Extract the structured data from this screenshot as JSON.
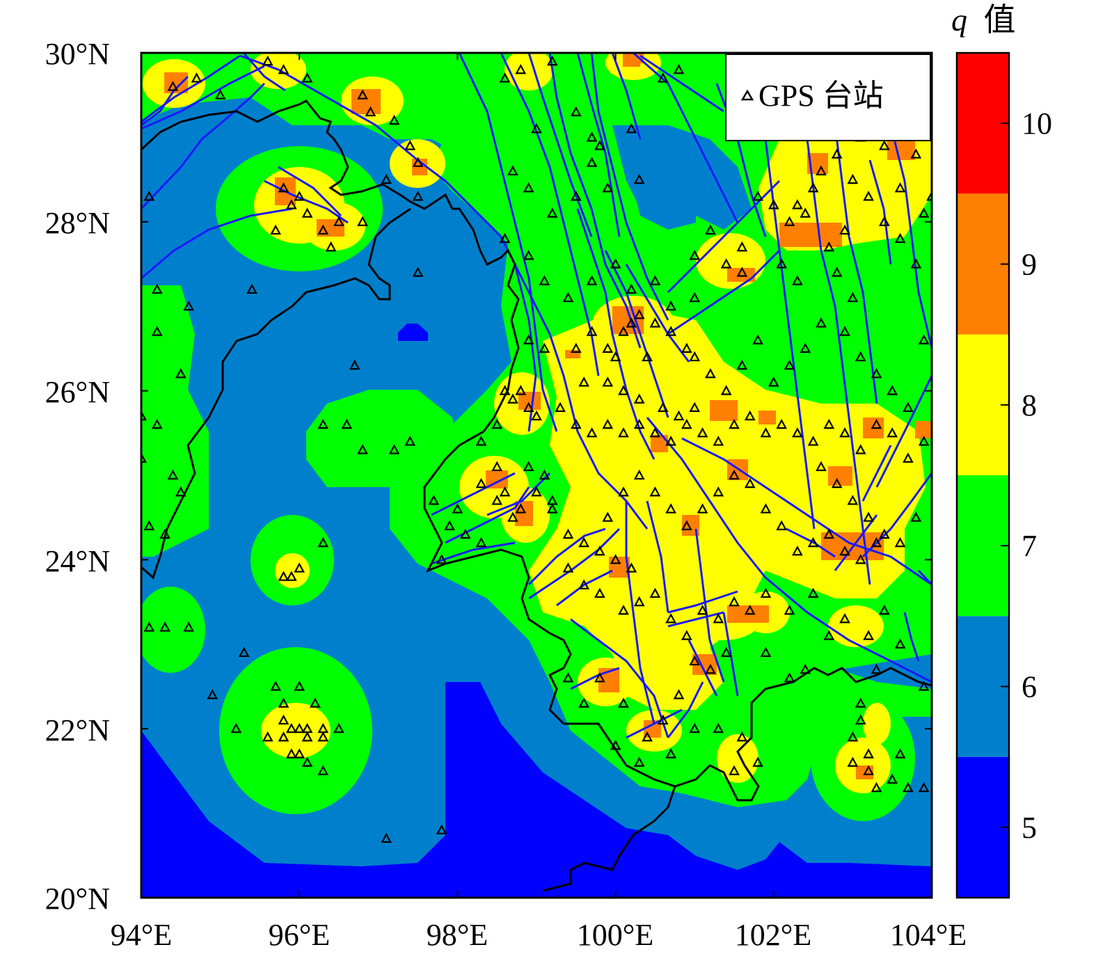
{
  "map": {
    "lon_range": [
      94,
      104
    ],
    "lat_range": [
      20,
      30
    ],
    "x_ticks": [
      "94°E",
      "96°E",
      "98°E",
      "100°E",
      "102°E",
      "104°E"
    ],
    "y_ticks": [
      "20°N",
      "22°N",
      "24°N",
      "26°N",
      "28°N",
      "30°N"
    ],
    "fault_color": "#1a1aff",
    "border_color": "#000000"
  },
  "legend": {
    "label": "GPS 台站",
    "marker": "triangle-icon"
  },
  "colorbar": {
    "title_var": "q",
    "title_suffix": "值",
    "ticks": [
      "5",
      "6",
      "7",
      "8",
      "9",
      "10"
    ],
    "classes": [
      {
        "range": [
          4.5,
          5.5
        ],
        "color": "#0000ff"
      },
      {
        "range": [
          5.5,
          6.5
        ],
        "color": "#0080cc"
      },
      {
        "range": [
          6.5,
          7.5
        ],
        "color": "#00ff00"
      },
      {
        "range": [
          7.5,
          8.5
        ],
        "color": "#ffff00"
      },
      {
        "range": [
          8.5,
          9.5
        ],
        "color": "#ff8000"
      },
      {
        "range": [
          9.5,
          10.5
        ],
        "color": "#ff0000"
      }
    ]
  },
  "stations": [
    [
      94.4,
      29.6
    ],
    [
      94.7,
      29.7
    ],
    [
      95.0,
      29.5
    ],
    [
      95.6,
      29.9
    ],
    [
      95.8,
      29.8
    ],
    [
      96.1,
      29.7
    ],
    [
      96.8,
      29.5
    ],
    [
      96.9,
      29.3
    ],
    [
      97.2,
      29.2
    ],
    [
      97.5,
      28.7
    ],
    [
      97.4,
      28.9
    ],
    [
      95.8,
      28.4
    ],
    [
      95.9,
      28.2
    ],
    [
      96.0,
      28.3
    ],
    [
      96.1,
      28.1
    ],
    [
      96.3,
      27.9
    ],
    [
      96.5,
      28.0
    ],
    [
      95.7,
      27.9
    ],
    [
      96.4,
      27.7
    ],
    [
      97.1,
      28.5
    ],
    [
      97.5,
      28.3
    ],
    [
      94.1,
      28.3
    ],
    [
      96.8,
      28.0
    ],
    [
      98.6,
      29.7
    ],
    [
      98.8,
      29.8
    ],
    [
      99.2,
      29.9
    ],
    [
      99.5,
      29.3
    ],
    [
      99.8,
      28.9
    ],
    [
      100.2,
      29.1
    ],
    [
      100.6,
      29.7
    ],
    [
      100.8,
      29.8
    ],
    [
      99.9,
      28.4
    ],
    [
      99.7,
      28.7
    ],
    [
      100.3,
      28.5
    ],
    [
      94.2,
      27.2
    ],
    [
      94.6,
      27.0
    ],
    [
      95.4,
      27.2
    ],
    [
      94.2,
      26.7
    ],
    [
      94.5,
      26.2
    ],
    [
      94.0,
      25.7
    ],
    [
      94.2,
      25.6
    ],
    [
      94.4,
      25.0
    ],
    [
      94.5,
      24.8
    ],
    [
      94.1,
      24.4
    ],
    [
      94.3,
      24.3
    ],
    [
      94.0,
      25.2
    ],
    [
      94.1,
      23.2
    ],
    [
      94.3,
      23.2
    ],
    [
      94.6,
      23.2
    ],
    [
      96.7,
      26.3
    ],
    [
      96.3,
      25.6
    ],
    [
      96.6,
      25.6
    ],
    [
      96.8,
      25.3
    ],
    [
      97.2,
      25.3
    ],
    [
      97.4,
      25.4
    ],
    [
      97.5,
      27.4
    ],
    [
      95.8,
      23.8
    ],
    [
      95.9,
      23.8
    ],
    [
      96.0,
      23.9
    ],
    [
      96.3,
      24.2
    ],
    [
      95.3,
      22.9
    ],
    [
      94.9,
      22.4
    ],
    [
      95.2,
      22.0
    ],
    [
      95.7,
      22.5
    ],
    [
      95.8,
      22.3
    ],
    [
      95.8,
      22.1
    ],
    [
      96.0,
      22.5
    ],
    [
      96.1,
      22.0
    ],
    [
      96.2,
      22.3
    ],
    [
      96.3,
      22.0
    ],
    [
      96.3,
      21.9
    ],
    [
      95.6,
      21.9
    ],
    [
      95.8,
      21.9
    ],
    [
      95.9,
      22.0
    ],
    [
      96.0,
      22.0
    ],
    [
      96.1,
      21.9
    ],
    [
      96.5,
      22.0
    ],
    [
      95.9,
      21.7
    ],
    [
      96.1,
      21.6
    ],
    [
      96.0,
      21.7
    ],
    [
      96.3,
      21.5
    ],
    [
      97.1,
      20.7
    ],
    [
      97.8,
      20.8
    ],
    [
      98.6,
      24.8
    ],
    [
      98.5,
      24.7
    ],
    [
      98.8,
      24.6
    ],
    [
      98.7,
      24.5
    ],
    [
      99.0,
      24.8
    ],
    [
      99.2,
      24.7
    ],
    [
      99.1,
      25.0
    ],
    [
      98.9,
      25.1
    ],
    [
      98.5,
      25.1
    ],
    [
      98.3,
      24.9
    ],
    [
      98.0,
      24.6
    ],
    [
      97.7,
      24.7
    ],
    [
      97.9,
      24.4
    ],
    [
      98.1,
      24.3
    ],
    [
      98.3,
      24.2
    ],
    [
      97.8,
      24.0
    ],
    [
      98.6,
      26.0
    ],
    [
      98.8,
      26.0
    ],
    [
      98.9,
      25.8
    ],
    [
      99.0,
      25.7
    ],
    [
      98.7,
      25.9
    ],
    [
      98.5,
      25.6
    ],
    [
      98.3,
      25.4
    ],
    [
      98.9,
      26.6
    ],
    [
      99.1,
      26.5
    ],
    [
      99.5,
      26.5
    ],
    [
      99.7,
      26.7
    ],
    [
      99.9,
      26.5
    ],
    [
      100.1,
      26.7
    ],
    [
      100.2,
      26.8
    ],
    [
      100.3,
      26.9
    ],
    [
      100.5,
      26.8
    ],
    [
      100.7,
      26.7
    ],
    [
      100.9,
      26.5
    ],
    [
      100.4,
      26.4
    ],
    [
      100.0,
      26.4
    ],
    [
      99.6,
      26.1
    ],
    [
      99.9,
      26.1
    ],
    [
      100.1,
      26.0
    ],
    [
      100.3,
      25.9
    ],
    [
      100.6,
      25.8
    ],
    [
      100.8,
      25.7
    ],
    [
      101.0,
      25.8
    ],
    [
      99.3,
      25.8
    ],
    [
      99.5,
      25.6
    ],
    [
      99.7,
      25.5
    ],
    [
      99.9,
      25.6
    ],
    [
      100.1,
      25.5
    ],
    [
      100.3,
      25.6
    ],
    [
      100.5,
      25.5
    ],
    [
      100.7,
      25.4
    ],
    [
      100.9,
      25.6
    ],
    [
      101.1,
      25.5
    ],
    [
      101.3,
      25.4
    ],
    [
      101.5,
      25.6
    ],
    [
      101.7,
      25.7
    ],
    [
      101.9,
      25.5
    ],
    [
      102.1,
      25.6
    ],
    [
      102.3,
      25.5
    ],
    [
      102.5,
      25.4
    ],
    [
      102.7,
      25.6
    ],
    [
      102.9,
      25.5
    ],
    [
      103.1,
      25.3
    ],
    [
      103.3,
      25.6
    ],
    [
      103.5,
      25.5
    ],
    [
      103.7,
      25.2
    ],
    [
      103.9,
      25.4
    ],
    [
      99.2,
      24.6
    ],
    [
      99.4,
      24.3
    ],
    [
      99.6,
      24.2
    ],
    [
      99.8,
      24.1
    ],
    [
      100.0,
      24.0
    ],
    [
      100.2,
      23.9
    ],
    [
      99.4,
      23.9
    ],
    [
      99.6,
      23.7
    ],
    [
      99.8,
      23.6
    ],
    [
      100.1,
      23.4
    ],
    [
      100.3,
      23.5
    ],
    [
      100.5,
      23.6
    ],
    [
      100.7,
      23.3
    ],
    [
      100.9,
      23.1
    ],
    [
      101.1,
      23.4
    ],
    [
      101.3,
      23.3
    ],
    [
      101.5,
      23.5
    ],
    [
      101.7,
      23.4
    ],
    [
      101.9,
      23.6
    ],
    [
      101.4,
      22.9
    ],
    [
      101.2,
      22.7
    ],
    [
      101.0,
      22.8
    ],
    [
      100.8,
      22.4
    ],
    [
      100.6,
      22.1
    ],
    [
      100.4,
      21.9
    ],
    [
      100.1,
      22.3
    ],
    [
      99.8,
      22.6
    ],
    [
      99.6,
      22.3
    ],
    [
      99.4,
      22.6
    ],
    [
      100.0,
      21.8
    ],
    [
      100.3,
      21.6
    ],
    [
      100.7,
      21.7
    ],
    [
      101.0,
      22.0
    ],
    [
      101.3,
      22.0
    ],
    [
      101.6,
      21.9
    ],
    [
      101.8,
      21.6
    ],
    [
      101.5,
      21.5
    ],
    [
      102.4,
      22.7
    ],
    [
      103.1,
      22.3
    ],
    [
      103.1,
      22.1
    ],
    [
      103.0,
      21.9
    ],
    [
      103.2,
      21.7
    ],
    [
      103.0,
      21.6
    ],
    [
      103.2,
      21.5
    ],
    [
      103.3,
      21.3
    ],
    [
      103.5,
      21.4
    ],
    [
      103.6,
      21.7
    ],
    [
      103.7,
      21.3
    ],
    [
      103.9,
      21.3
    ],
    [
      103.3,
      22.7
    ],
    [
      103.9,
      22.5
    ],
    [
      101.8,
      28.3
    ],
    [
      102.0,
      28.2
    ],
    [
      102.2,
      28.0
    ],
    [
      102.3,
      28.2
    ],
    [
      102.4,
      28.1
    ],
    [
      102.5,
      28.4
    ],
    [
      102.6,
      28.6
    ],
    [
      102.8,
      28.8
    ],
    [
      103.0,
      28.5
    ],
    [
      103.2,
      28.3
    ],
    [
      103.4,
      28.0
    ],
    [
      103.6,
      27.8
    ],
    [
      103.8,
      27.5
    ],
    [
      103.9,
      28.1
    ],
    [
      102.1,
      27.5
    ],
    [
      102.3,
      27.3
    ],
    [
      101.6,
      27.7
    ],
    [
      101.2,
      27.9
    ],
    [
      101.0,
      27.6
    ],
    [
      101.4,
      27.5
    ],
    [
      101.6,
      27.4
    ],
    [
      103.1,
      29.0
    ],
    [
      103.4,
      28.9
    ],
    [
      103.8,
      28.8
    ],
    [
      104.0,
      28.3
    ],
    [
      103.6,
      28.4
    ],
    [
      102.9,
      27.9
    ],
    [
      102.7,
      27.7
    ],
    [
      102.8,
      27.4
    ],
    [
      103.0,
      27.1
    ],
    [
      102.6,
      26.8
    ],
    [
      102.4,
      26.5
    ],
    [
      102.2,
      26.3
    ],
    [
      102.0,
      26.1
    ],
    [
      101.8,
      26.6
    ],
    [
      101.6,
      26.3
    ],
    [
      101.4,
      26.0
    ],
    [
      101.2,
      26.2
    ],
    [
      101.0,
      26.4
    ],
    [
      102.9,
      26.7
    ],
    [
      103.1,
      26.4
    ],
    [
      103.3,
      26.2
    ],
    [
      103.5,
      26.0
    ],
    [
      103.7,
      25.8
    ],
    [
      103.9,
      26.6
    ],
    [
      102.6,
      25.1
    ],
    [
      102.8,
      24.9
    ],
    [
      103.0,
      24.7
    ],
    [
      103.2,
      24.5
    ],
    [
      103.4,
      24.3
    ],
    [
      103.6,
      24.2
    ],
    [
      103.8,
      24.5
    ],
    [
      102.3,
      24.1
    ],
    [
      102.5,
      24.2
    ],
    [
      102.7,
      24.3
    ],
    [
      102.9,
      24.1
    ],
    [
      103.1,
      24.0
    ],
    [
      103.3,
      24.2
    ],
    [
      102.1,
      24.4
    ],
    [
      101.9,
      24.6
    ],
    [
      101.7,
      24.9
    ],
    [
      101.5,
      25.0
    ],
    [
      101.3,
      24.8
    ],
    [
      101.1,
      24.6
    ],
    [
      100.9,
      24.4
    ],
    [
      100.7,
      24.6
    ],
    [
      100.5,
      24.8
    ],
    [
      100.3,
      25.0
    ],
    [
      100.1,
      24.8
    ],
    [
      99.9,
      24.5
    ],
    [
      102.2,
      23.4
    ],
    [
      102.5,
      23.6
    ],
    [
      102.7,
      23.1
    ],
    [
      102.9,
      23.3
    ],
    [
      103.2,
      23.1
    ],
    [
      103.4,
      23.4
    ],
    [
      103.6,
      23.0
    ],
    [
      101.9,
      22.9
    ],
    [
      102.2,
      22.6
    ],
    [
      99.7,
      29.0
    ],
    [
      99.0,
      29.1
    ],
    [
      98.9,
      28.4
    ],
    [
      98.7,
      28.6
    ],
    [
      99.2,
      28.1
    ],
    [
      99.5,
      28.3
    ],
    [
      98.6,
      27.8
    ],
    [
      98.9,
      27.6
    ],
    [
      99.1,
      27.3
    ],
    [
      99.4,
      27.1
    ],
    [
      99.7,
      27.3
    ],
    [
      100.0,
      27.5
    ],
    [
      100.2,
      27.2
    ],
    [
      100.5,
      27.3
    ],
    [
      100.7,
      27.0
    ],
    [
      101.0,
      27.1
    ]
  ]
}
